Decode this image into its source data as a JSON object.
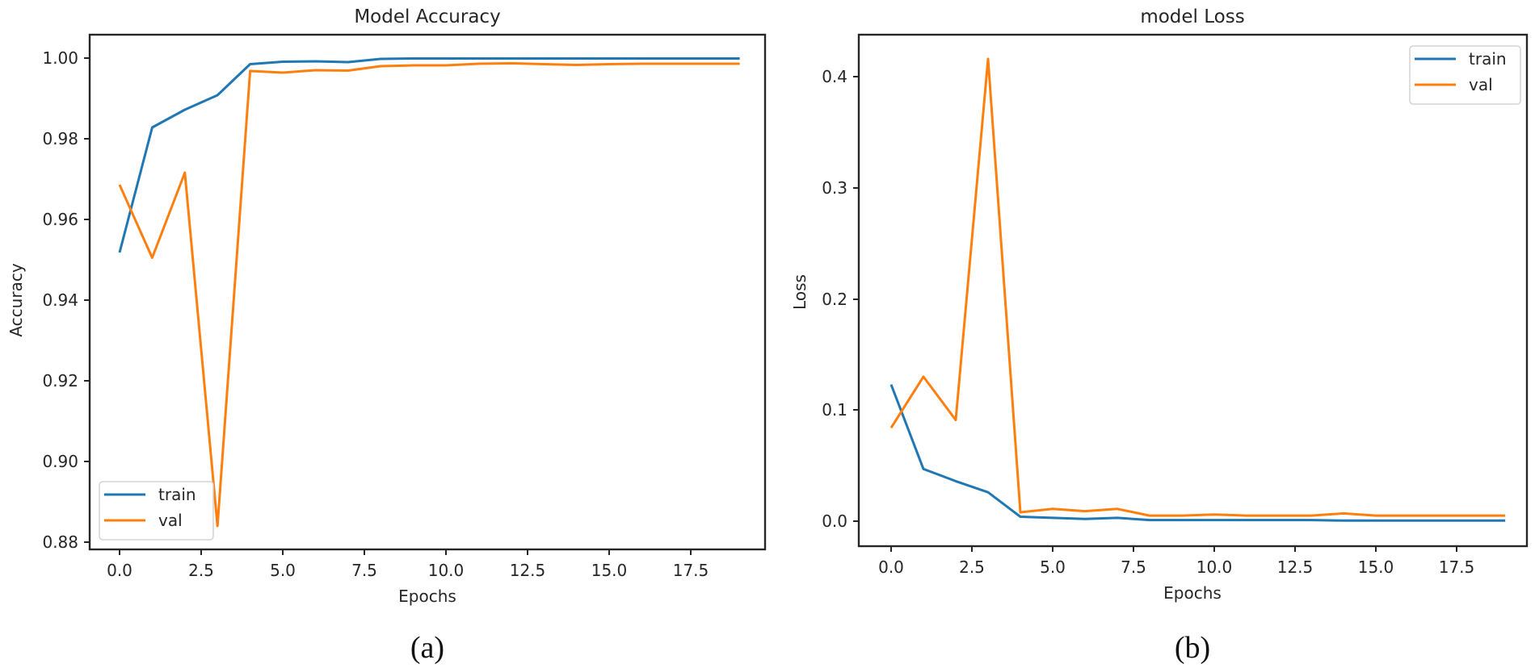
{
  "figure": {
    "panels": [
      {
        "caption": "(a)",
        "title": "Model Accuracy",
        "xlabel": "Epochs",
        "ylabel": "Accuracy",
        "xticks": [
          "0.0",
          "2.5",
          "5.0",
          "7.5",
          "10.0",
          "12.5",
          "15.0",
          "17.5"
        ],
        "yticks": [
          "0.88",
          "0.90",
          "0.92",
          "0.94",
          "0.96",
          "0.98",
          "1.00"
        ],
        "legend": {
          "position": "lower left",
          "items": [
            {
              "label": "train",
              "color": "#1f77b4"
            },
            {
              "label": "val",
              "color": "#ff7f0e"
            }
          ]
        }
      },
      {
        "caption": "(b)",
        "title": "model Loss",
        "xlabel": "Epochs",
        "ylabel": "Loss",
        "xticks": [
          "0.0",
          "2.5",
          "5.0",
          "7.5",
          "10.0",
          "12.5",
          "15.0",
          "17.5"
        ],
        "yticks": [
          "0.0",
          "0.1",
          "0.2",
          "0.3",
          "0.4"
        ],
        "legend": {
          "position": "upper right",
          "items": [
            {
              "label": "train",
              "color": "#1f77b4"
            },
            {
              "label": "val",
              "color": "#ff7f0e"
            }
          ]
        }
      }
    ]
  },
  "chart_data": [
    {
      "type": "line",
      "title": "Model Accuracy",
      "xlabel": "Epochs",
      "ylabel": "Accuracy",
      "x": [
        0,
        1,
        2,
        3,
        4,
        5,
        6,
        7,
        8,
        9,
        10,
        11,
        12,
        13,
        14,
        15,
        16,
        17,
        18,
        19
      ],
      "xlim": [
        -0.95,
        19.95
      ],
      "ylim": [
        0.8785,
        1.0058
      ],
      "xticks": [
        0.0,
        2.5,
        5.0,
        7.5,
        10.0,
        12.5,
        15.0,
        17.5
      ],
      "yticks": [
        0.88,
        0.9,
        0.92,
        0.94,
        0.96,
        0.98,
        1.0
      ],
      "grid": false,
      "legend_position": "lower left",
      "series": [
        {
          "name": "train",
          "color": "#1f77b4",
          "values": [
            0.9518,
            0.9828,
            0.9872,
            0.9908,
            0.9985,
            0.9991,
            0.9992,
            0.999,
            0.9998,
            0.9999,
            0.9999,
            0.9999,
            0.9999,
            0.9999,
            0.9999,
            0.9999,
            0.9999,
            0.9999,
            0.9999,
            0.9999
          ]
        },
        {
          "name": "val",
          "color": "#ff7f0e",
          "values": [
            0.9686,
            0.9505,
            0.9716,
            0.884,
            0.9968,
            0.9964,
            0.997,
            0.9969,
            0.998,
            0.9982,
            0.9982,
            0.9986,
            0.9987,
            0.9985,
            0.9983,
            0.9985,
            0.9986,
            0.9986,
            0.9986,
            0.9986
          ]
        }
      ]
    },
    {
      "type": "line",
      "title": "model Loss",
      "xlabel": "Epochs",
      "ylabel": "Loss",
      "x": [
        0,
        1,
        2,
        3,
        4,
        5,
        6,
        7,
        8,
        9,
        10,
        11,
        12,
        13,
        14,
        15,
        16,
        17,
        18,
        19
      ],
      "xlim": [
        -0.95,
        19.95
      ],
      "ylim": [
        -0.022,
        0.438
      ],
      "xticks": [
        0.0,
        2.5,
        5.0,
        7.5,
        10.0,
        12.5,
        15.0,
        17.5
      ],
      "yticks": [
        0.0,
        0.1,
        0.2,
        0.3,
        0.4
      ],
      "grid": false,
      "legend_position": "upper right",
      "series": [
        {
          "name": "train",
          "color": "#1f77b4",
          "values": [
            0.123,
            0.047,
            0.036,
            0.026,
            0.004,
            0.003,
            0.002,
            0.003,
            0.001,
            0.001,
            0.001,
            0.001,
            0.001,
            0.001,
            0.0005,
            0.0005,
            0.0005,
            0.0005,
            0.0005,
            0.0005
          ]
        },
        {
          "name": "val",
          "color": "#ff7f0e",
          "values": [
            0.084,
            0.13,
            0.091,
            0.416,
            0.008,
            0.011,
            0.009,
            0.011,
            0.005,
            0.005,
            0.006,
            0.005,
            0.005,
            0.005,
            0.007,
            0.005,
            0.005,
            0.005,
            0.005,
            0.005
          ]
        }
      ]
    }
  ]
}
